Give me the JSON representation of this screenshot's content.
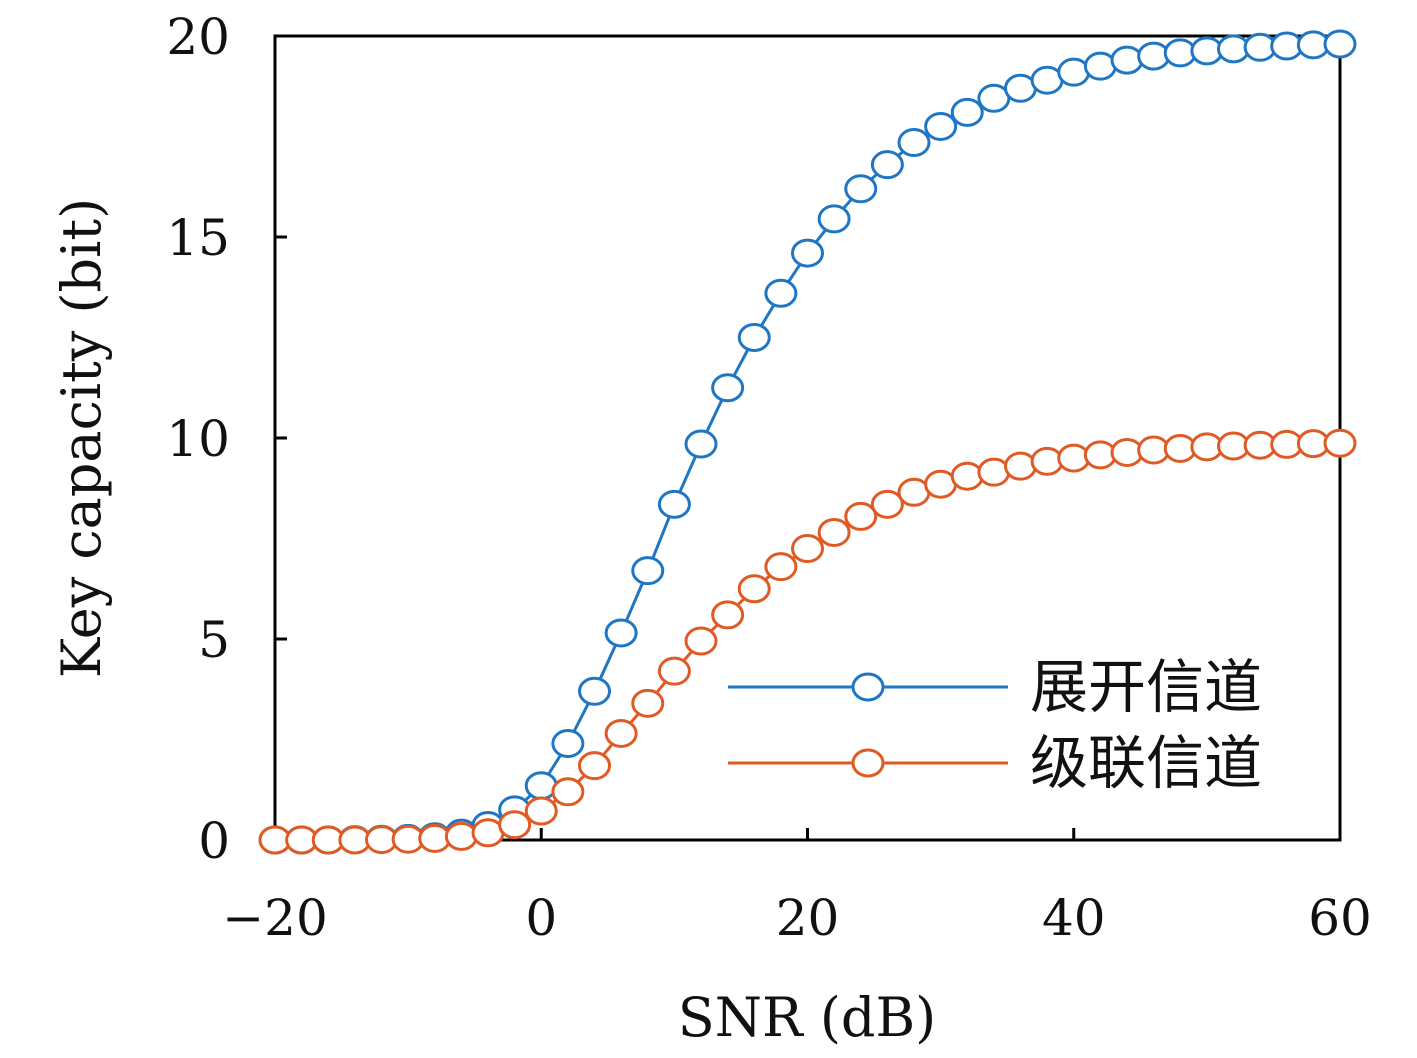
{
  "chart_data": {
    "type": "line",
    "xlabel": "SNR (dB)",
    "ylabel": "Key capacity (bit)",
    "xlim": [
      -20,
      60
    ],
    "ylim": [
      0,
      20
    ],
    "xticks": [
      -20,
      0,
      20,
      40,
      60
    ],
    "xtick_labels": [
      "−20",
      "0",
      "20",
      "40",
      "60"
    ],
    "yticks": [
      0,
      5,
      10,
      15,
      20
    ],
    "ytick_labels": [
      "0",
      "5",
      "10",
      "15",
      "20"
    ],
    "grid": false,
    "legend_position": "bottom-right",
    "x": [
      -20,
      -18,
      -16,
      -14,
      -12,
      -10,
      -8,
      -6,
      -4,
      -2,
      0,
      2,
      4,
      6,
      8,
      10,
      12,
      14,
      16,
      18,
      20,
      22,
      24,
      26,
      28,
      30,
      32,
      34,
      36,
      38,
      40,
      42,
      44,
      46,
      48,
      50,
      52,
      54,
      56,
      58,
      60
    ],
    "series": [
      {
        "name": "展开信道",
        "color": "#1f77c4",
        "marker": "circle-open",
        "values": [
          0.0,
          0.0,
          0.0,
          0.01,
          0.02,
          0.04,
          0.08,
          0.17,
          0.36,
          0.75,
          1.35,
          2.4,
          3.7,
          5.15,
          6.7,
          8.35,
          9.85,
          11.25,
          12.5,
          13.6,
          14.6,
          15.45,
          16.2,
          16.8,
          17.35,
          17.75,
          18.1,
          18.45,
          18.7,
          18.9,
          19.1,
          19.25,
          19.4,
          19.5,
          19.58,
          19.63,
          19.68,
          19.72,
          19.75,
          19.78,
          19.8
        ]
      },
      {
        "name": "级联信道",
        "color": "#e05a24",
        "marker": "circle-open",
        "values": [
          0.0,
          0.0,
          0.0,
          0.0,
          0.01,
          0.02,
          0.04,
          0.09,
          0.18,
          0.38,
          0.72,
          1.2,
          1.85,
          2.65,
          3.4,
          4.2,
          4.95,
          5.6,
          6.25,
          6.8,
          7.25,
          7.65,
          8.05,
          8.35,
          8.65,
          8.85,
          9.05,
          9.15,
          9.3,
          9.42,
          9.5,
          9.58,
          9.64,
          9.7,
          9.74,
          9.78,
          9.8,
          9.82,
          9.84,
          9.86,
          9.87
        ]
      }
    ]
  }
}
